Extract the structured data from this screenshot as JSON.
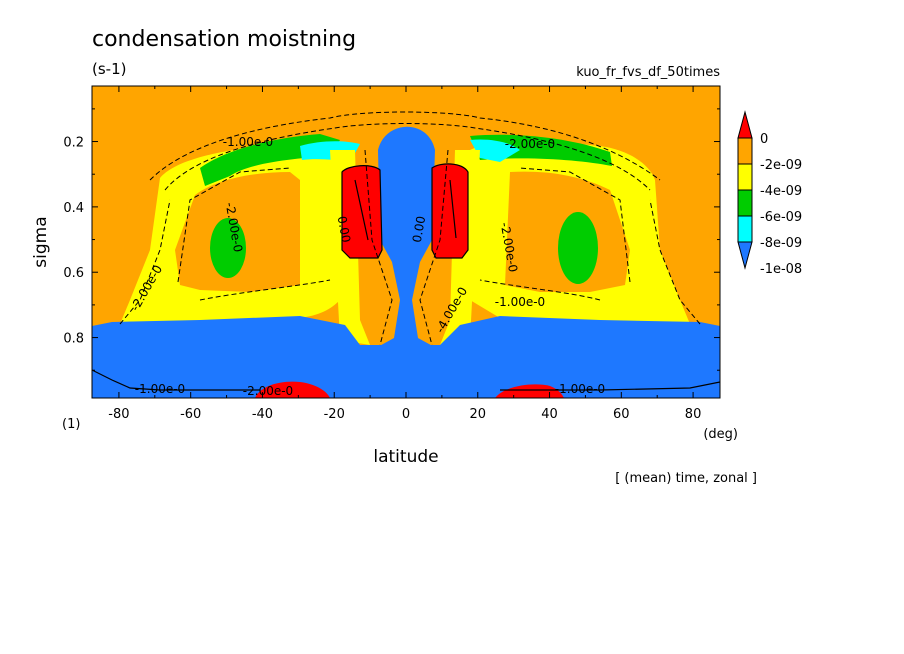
{
  "chart_data": {
    "type": "heatmap",
    "title": "condensation moistning",
    "units": "(s-1)",
    "experiment": "kuo_fr_fvs_df_50times",
    "xlabel": "latitude",
    "ylabel": "sigma",
    "x_unit": "(deg)",
    "y_unit": "(1)",
    "annotation": "[ (mean) time, zonal ]",
    "xlim": [
      -87.5,
      87.5
    ],
    "ylim": [
      0.03,
      0.985
    ],
    "y_inverted": true,
    "x_ticks": [
      "-80",
      "-60",
      "-40",
      "-20",
      "0",
      "20",
      "40",
      "60",
      "80"
    ],
    "x_tick_values": [
      -80,
      -60,
      -40,
      -20,
      0,
      20,
      40,
      60,
      80
    ],
    "y_ticks": [
      "0.2",
      "0.4",
      "0.6",
      "0.8"
    ],
    "y_tick_values": [
      0.2,
      0.4,
      0.6,
      0.8
    ],
    "colorbar": {
      "labels": [
        "0",
        "-2e-09",
        "-4e-09",
        "-6e-09",
        "-8e-09",
        "-1e-08"
      ],
      "colors": [
        "#ff0000",
        "#ffa500",
        "#ffff00",
        "#00cc00",
        "#00ffff",
        "#1e78ff"
      ]
    },
    "contour_labels": [
      "-1.00e-0",
      "-2.00e-0",
      "-2.00e-0",
      "-2.00e-0",
      "0.00",
      "0.00",
      "-4.00e-0",
      "-2.00e-0",
      "-1.00e-0",
      "-1.00e-0",
      "-1.00e-0",
      "-2.00e-0"
    ],
    "colors": {
      "background": "#ffa500",
      "deep_negative": "#1e78ff",
      "positive": "#ff0000"
    }
  }
}
